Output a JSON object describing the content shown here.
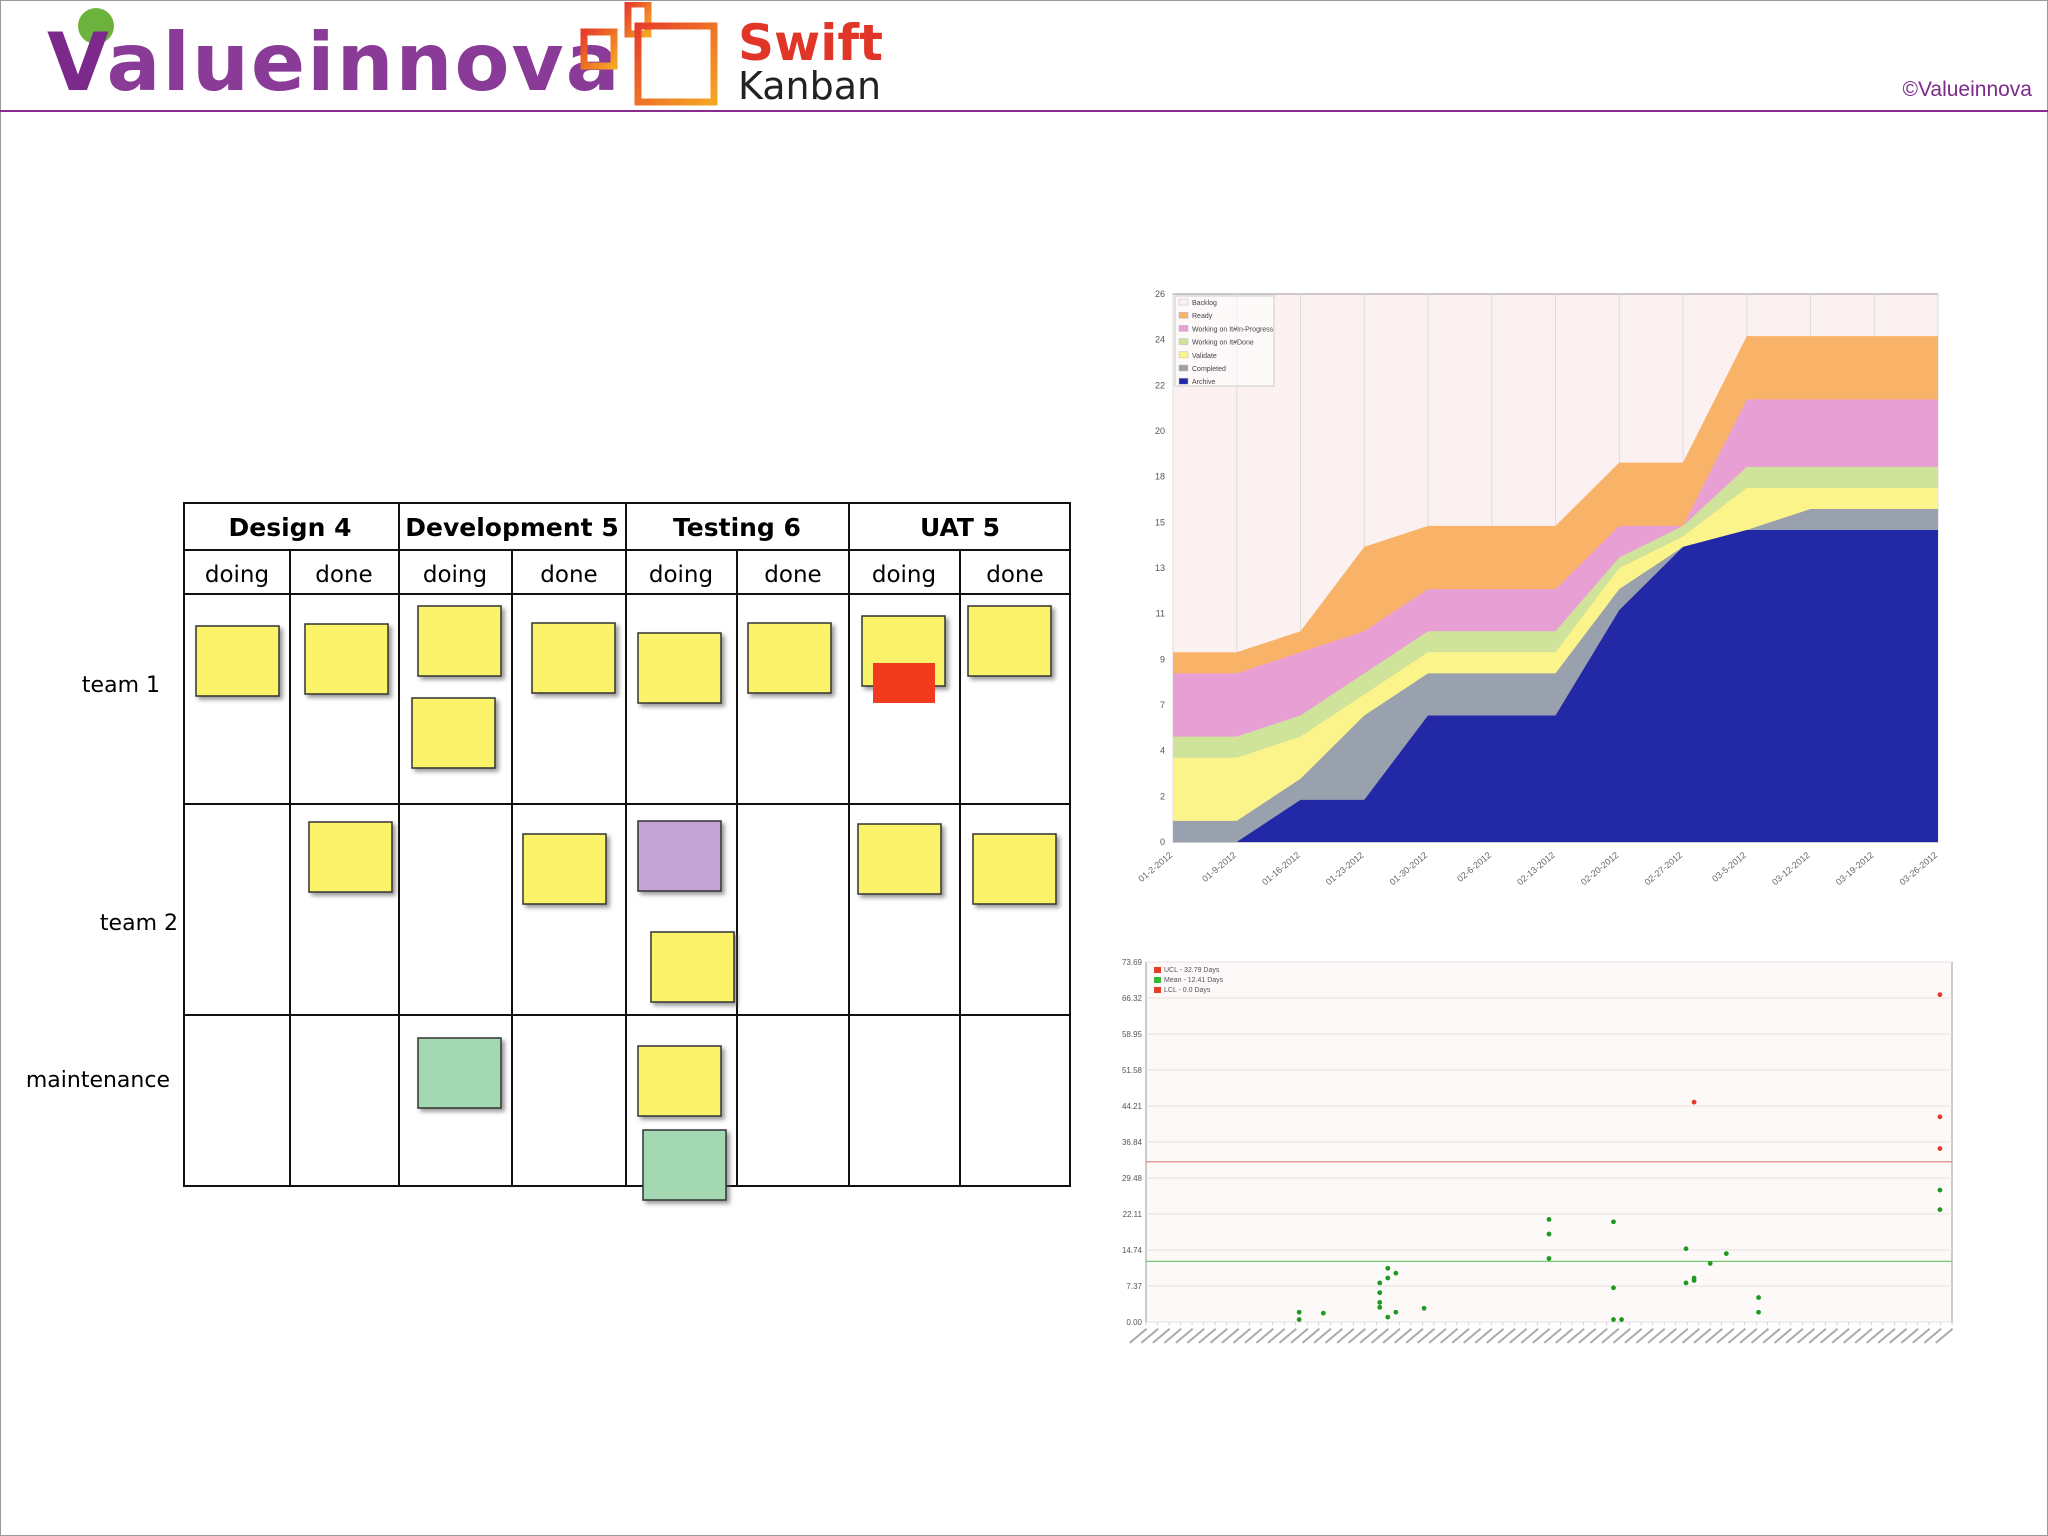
{
  "header": {
    "logo_text": "Valueinnova",
    "logo_v": "V",
    "logo_rest": "alueinnova",
    "swift_title": "Swift",
    "swift_sub": "Kanban",
    "copyright": "©Valueinnova"
  },
  "board": {
    "columns": [
      {
        "title": "Design 4",
        "sub": [
          "doing",
          "done"
        ]
      },
      {
        "title": "Development 5",
        "sub": [
          "doing",
          "done"
        ]
      },
      {
        "title": "Testing 6",
        "sub": [
          "doing",
          "done"
        ]
      },
      {
        "title": "UAT 5",
        "sub": [
          "doing",
          "done"
        ]
      }
    ],
    "rows": [
      "team 1",
      "team 2",
      "maintenance"
    ]
  },
  "cfd_chart": {
    "type": "area",
    "y_ticks": [
      "0",
      "2",
      "4",
      "7",
      "9",
      "11",
      "13",
      "15",
      "18",
      "20",
      "22",
      "24",
      "26"
    ],
    "x_ticks": [
      "01-2-2012",
      "01-9-2012",
      "01-16-2012",
      "01-23-2012",
      "01-30-2012",
      "02-6-2012",
      "02-13-2012",
      "02-20-2012",
      "02-27-2012",
      "03-5-2012",
      "03-12-2012",
      "03-19-2012",
      "03-26-2012"
    ],
    "legend": [
      "Backlog",
      "Ready",
      "Working on It#In-Progress",
      "Working on It#Done",
      "Validate",
      "Completed",
      "Archive"
    ],
    "colors": {
      "Backlog": "#fbf1f0",
      "Ready": "#f9b368",
      "Working on It#In-Progress": "#e8a0d4",
      "Working on It#Done": "#cfe39b",
      "Validate": "#fbf48a",
      "Completed": "#9aa1ae",
      "Archive": "#2329a6"
    }
  },
  "chart_data": [
    {
      "type": "area",
      "x": [
        "01-2-2012",
        "01-9-2012",
        "01-16-2012",
        "01-23-2012",
        "01-30-2012",
        "02-6-2012",
        "02-13-2012",
        "02-20-2012",
        "02-27-2012",
        "03-5-2012",
        "03-12-2012",
        "03-19-2012",
        "03-26-2012"
      ],
      "ylim": [
        0,
        26
      ],
      "stack_tops": {
        "Archive": [
          0,
          0,
          2,
          2,
          6,
          6,
          6,
          11,
          14,
          14.8,
          14.8,
          14.8,
          14.8
        ],
        "Completed": [
          1,
          1,
          3,
          6,
          8,
          8,
          8,
          12,
          14,
          14.8,
          15.8,
          15.8,
          15.8
        ],
        "Validate": [
          4,
          4,
          5,
          7,
          9,
          9,
          9,
          13,
          14.5,
          16.8,
          16.8,
          16.8,
          16.8
        ],
        "Working on It#Done": [
          5,
          5,
          6,
          8,
          10,
          10,
          10,
          13.5,
          15,
          17.8,
          17.8,
          17.8,
          17.8
        ],
        "Working on It#In-Progress": [
          8,
          8,
          9,
          10,
          12,
          12,
          12,
          15,
          15,
          21,
          21,
          21,
          21
        ],
        "Ready": [
          9,
          9,
          10,
          14,
          15,
          15,
          15,
          18,
          18,
          24,
          24,
          24,
          24
        ]
      }
    },
    {
      "type": "scatter",
      "y_ticks": [
        "73.69",
        "66.32",
        "58.95",
        "51.58",
        "44.21",
        "36.84",
        "29.48",
        "22.11",
        "14.74",
        "7.37",
        "0.00"
      ],
      "ylim": [
        0,
        73.69
      ],
      "legend": [
        "UCL - 32.79 Days",
        "Mean - 12.41 Days",
        "LCL - 0.0 Days"
      ],
      "ucl": 32.79,
      "mean": 12.41,
      "points_green": [
        [
          0.19,
          2
        ],
        [
          0.19,
          0.5
        ],
        [
          0.22,
          1.8
        ],
        [
          0.29,
          8
        ],
        [
          0.29,
          6
        ],
        [
          0.29,
          4
        ],
        [
          0.29,
          3
        ],
        [
          0.3,
          9
        ],
        [
          0.3,
          11
        ],
        [
          0.3,
          1
        ],
        [
          0.31,
          10
        ],
        [
          0.31,
          2
        ],
        [
          0.345,
          2.8
        ],
        [
          0.5,
          21
        ],
        [
          0.5,
          18
        ],
        [
          0.5,
          13
        ],
        [
          0.58,
          20.5
        ],
        [
          0.58,
          7
        ],
        [
          0.58,
          0.5
        ],
        [
          0.59,
          0.5
        ],
        [
          0.67,
          15
        ],
        [
          0.67,
          8
        ],
        [
          0.68,
          8.5
        ],
        [
          0.68,
          9
        ],
        [
          0.7,
          12
        ],
        [
          0.72,
          14
        ],
        [
          0.76,
          5
        ],
        [
          0.76,
          2
        ],
        [
          0.985,
          27
        ],
        [
          0.985,
          23
        ]
      ],
      "points_red": [
        [
          0.68,
          45
        ],
        [
          0.985,
          67
        ],
        [
          0.985,
          42
        ],
        [
          0.985,
          35.5
        ]
      ]
    }
  ]
}
